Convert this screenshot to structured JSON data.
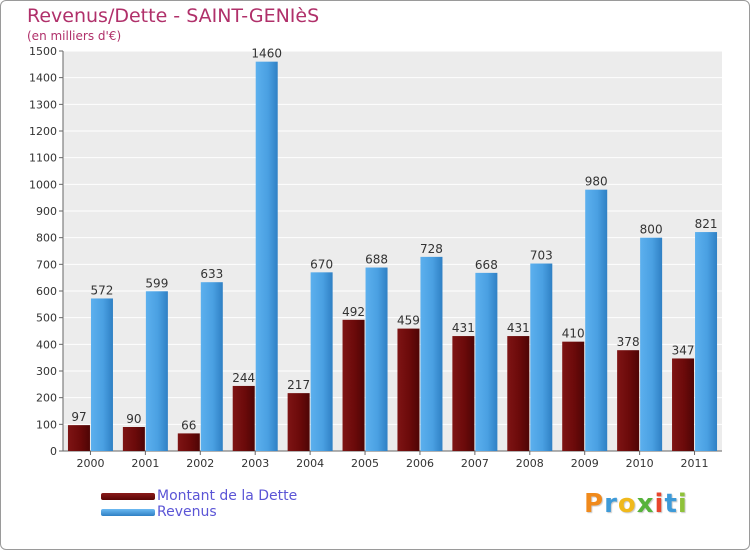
{
  "chart_data": {
    "type": "bar",
    "title": "Revenus/Dette - SAINT-GENIèS",
    "subtitle": "(en milliers d'€)",
    "xlabel": "",
    "ylabel": "",
    "categories": [
      "2000",
      "2001",
      "2002",
      "2003",
      "2004",
      "2005",
      "2006",
      "2007",
      "2008",
      "2009",
      "2010",
      "2011"
    ],
    "series": [
      {
        "name": "Montant de la Dette",
        "color": "#6b0a0a",
        "values": [
          97,
          90,
          66,
          244,
          217,
          492,
          459,
          431,
          431,
          410,
          378,
          347
        ]
      },
      {
        "name": "Revenus",
        "color": "#4aa0e2",
        "values": [
          572,
          599,
          633,
          1460,
          670,
          688,
          728,
          668,
          703,
          980,
          800,
          821
        ]
      }
    ],
    "ylim": [
      0,
      1500
    ],
    "yticks": [
      0,
      100,
      200,
      300,
      400,
      500,
      600,
      700,
      800,
      900,
      1000,
      1100,
      1200,
      1300,
      1400,
      1500
    ],
    "grid": true,
    "legend_position": "bottom-left"
  },
  "logo": {
    "letters": [
      "P",
      "r",
      "o",
      "x",
      "i",
      "t",
      "i"
    ],
    "colors": [
      "#f08a1c",
      "#3d9ad8",
      "#f0b91c",
      "#56b33b",
      "#e8452c",
      "#3d9ad8",
      "#8fc23a"
    ]
  }
}
